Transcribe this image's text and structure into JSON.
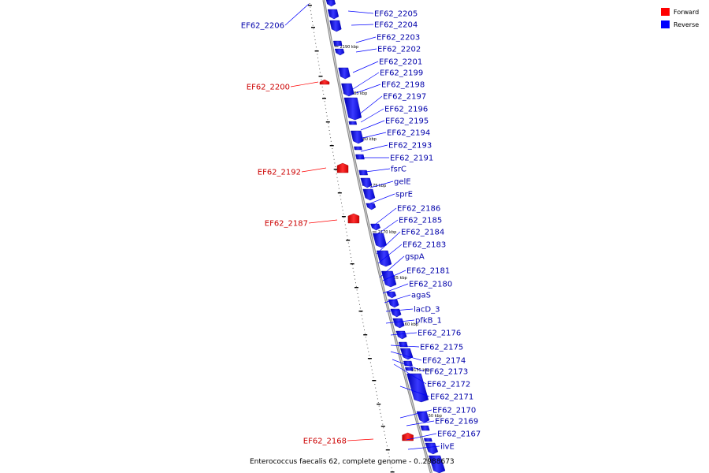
{
  "legend": [
    {
      "label": "Forward",
      "color": "#ff0000"
    },
    {
      "label": "Reverse",
      "color": "#0000ff"
    }
  ],
  "caption": "Enterococcus faecalis 62, complete genome - 0..2988673",
  "strand_colors": {
    "forward": "#ff0000",
    "reverse": "#0000ff",
    "forward_label": "#cc0000",
    "reverse_label": "#0000aa"
  },
  "ticks": [
    "2190 kbp",
    "2185 kbp",
    "2180 kbp",
    "2175 kbp",
    "2170 kbp",
    "2165 kbp",
    "2160 kbp",
    "2155 kbp",
    "2150 kbp"
  ],
  "forward_genes": [
    "EF62_2206",
    "EF62_2200",
    "EF62_2192",
    "EF62_2187",
    "EF62_2168"
  ],
  "reverse_genes": [
    "EF62_2205",
    "EF62_2204",
    "EF62_2203",
    "EF62_2202",
    "EF62_2201",
    "EF62_2199",
    "EF62_2198",
    "EF62_2197",
    "EF62_2196",
    "EF62_2195",
    "EF62_2194",
    "EF62_2193",
    "EF62_2191",
    "fsrC",
    "gelE",
    "sprE",
    "EF62_2186",
    "EF62_2185",
    "EF62_2184",
    "EF62_2183",
    "gspA",
    "EF62_2181",
    "EF62_2180",
    "agaS",
    "lacD_3",
    "pfkB_1",
    "EF62_2176",
    "EF62_2175",
    "EF62_2174",
    "EF62_2173",
    "EF62_2172",
    "EF62_2171",
    "EF62_2170",
    "EF62_2169",
    "EF62_2167",
    "ilvE"
  ]
}
